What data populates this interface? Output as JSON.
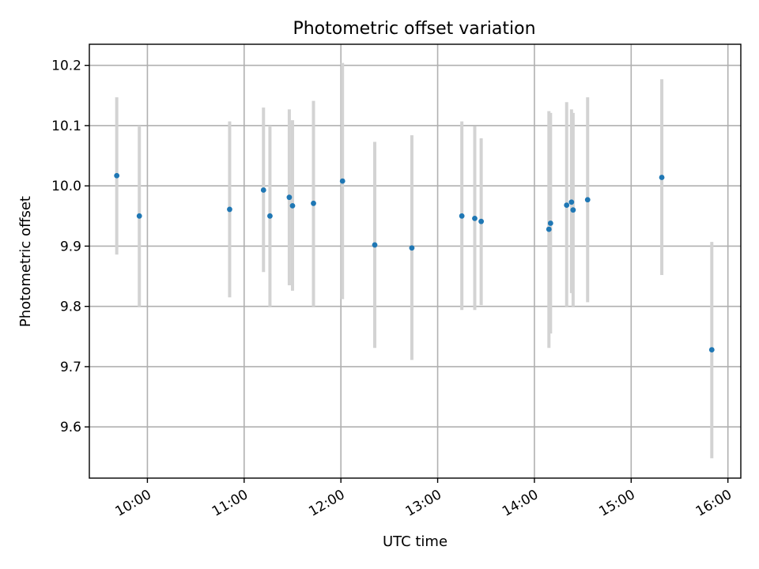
{
  "chart_data": {
    "type": "scatter",
    "title": "Photometric offset variation",
    "xlabel": "UTC time",
    "ylabel": "Photometric offset",
    "xlim": [
      "09:24",
      "16:08"
    ],
    "ylim": [
      9.515,
      10.235
    ],
    "x_ticks": [
      "10:00",
      "11:00",
      "12:00",
      "13:00",
      "14:00",
      "15:00",
      "16:00"
    ],
    "y_ticks": [
      9.6,
      9.7,
      9.8,
      9.9,
      10.0,
      10.1,
      10.2
    ],
    "y_tick_labels": [
      "9.6",
      "9.7",
      "9.8",
      "9.9",
      "10.0",
      "10.1",
      "10.2"
    ],
    "grid": true,
    "point_color": "#1f77b4",
    "errorbar_color": "#d3d3d3",
    "series": [
      {
        "points": [
          {
            "x": "09:41",
            "y": 10.017,
            "low": 9.886,
            "high": 10.147
          },
          {
            "x": "09:55",
            "y": 9.95,
            "low": 9.8,
            "high": 10.1
          },
          {
            "x": "10:51",
            "y": 9.961,
            "low": 9.815,
            "high": 10.107
          },
          {
            "x": "11:12",
            "y": 9.993,
            "low": 9.857,
            "high": 10.13
          },
          {
            "x": "11:16",
            "y": 9.95,
            "low": 9.8,
            "high": 10.1
          },
          {
            "x": "11:28",
            "y": 9.981,
            "low": 9.835,
            "high": 10.127
          },
          {
            "x": "11:30",
            "y": 9.967,
            "low": 9.826,
            "high": 10.109
          },
          {
            "x": "11:43",
            "y": 9.971,
            "low": 9.8,
            "high": 10.141
          },
          {
            "x": "12:01",
            "y": 10.008,
            "low": 9.812,
            "high": 10.204
          },
          {
            "x": "12:21",
            "y": 9.902,
            "low": 9.731,
            "high": 10.073
          },
          {
            "x": "12:44",
            "y": 9.897,
            "low": 9.711,
            "high": 10.084
          },
          {
            "x": "13:15",
            "y": 9.95,
            "low": 9.794,
            "high": 10.107
          },
          {
            "x": "13:23",
            "y": 9.946,
            "low": 9.794,
            "high": 10.099
          },
          {
            "x": "13:27",
            "y": 9.941,
            "low": 9.802,
            "high": 10.079
          },
          {
            "x": "14:09",
            "y": 9.928,
            "low": 9.731,
            "high": 10.124
          },
          {
            "x": "14:10",
            "y": 9.938,
            "low": 9.755,
            "high": 10.121
          },
          {
            "x": "14:20",
            "y": 9.968,
            "low": 9.8,
            "high": 10.139
          },
          {
            "x": "14:23",
            "y": 9.973,
            "low": 9.822,
            "high": 10.127
          },
          {
            "x": "14:24",
            "y": 9.96,
            "low": 9.8,
            "high": 10.121
          },
          {
            "x": "14:33",
            "y": 9.977,
            "low": 9.807,
            "high": 10.147
          },
          {
            "x": "15:19",
            "y": 10.014,
            "low": 9.852,
            "high": 10.177
          },
          {
            "x": "15:50",
            "y": 9.728,
            "low": 9.548,
            "high": 9.907
          }
        ]
      }
    ]
  }
}
